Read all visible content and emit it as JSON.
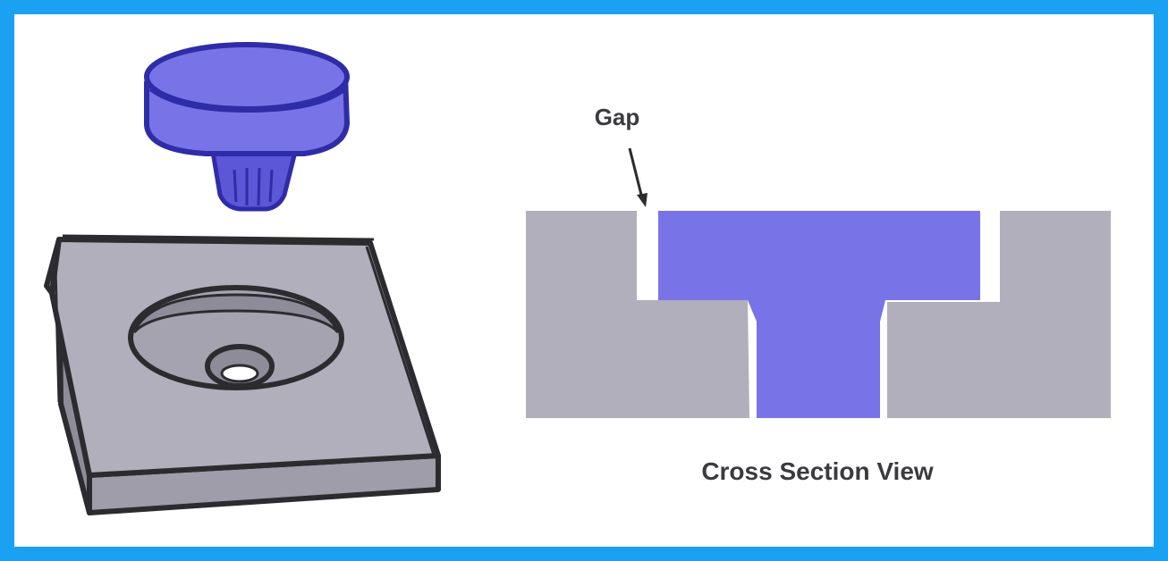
{
  "labels": {
    "gap": "Gap",
    "caption": "Cross Section View"
  },
  "colors": {
    "frame_border": "#1ba1f2",
    "knob_fill": "#7874e8",
    "knob_outline": "#2f2ca8",
    "base_gray": "#b1afbb",
    "outline_dark": "#2c2c30",
    "label_text": "#3b3b3f"
  }
}
